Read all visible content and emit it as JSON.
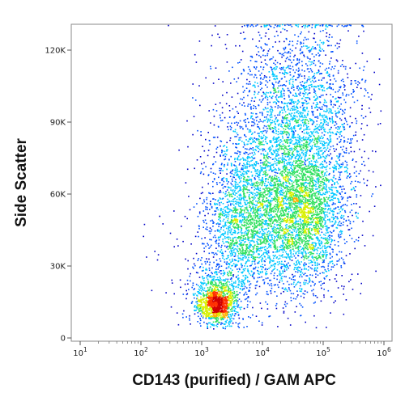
{
  "chart_data": {
    "type": "scatter",
    "subtype": "flow-cytometry-density-dot-plot",
    "xlabel": "CD143 (purified) / GAM APC",
    "ylabel": "Side Scatter",
    "x_scale": "log",
    "x_range": [
      10,
      1000000
    ],
    "x_ticks": [
      {
        "value": 10,
        "base": "10",
        "exp": "1"
      },
      {
        "value": 100,
        "base": "10",
        "exp": "2"
      },
      {
        "value": 1000,
        "base": "10",
        "exp": "3"
      },
      {
        "value": 10000,
        "base": "10",
        "exp": "4"
      },
      {
        "value": 100000,
        "base": "10",
        "exp": "5"
      },
      {
        "value": 1000000,
        "base": "10",
        "exp": "6"
      }
    ],
    "y_scale": "linear",
    "y_range": [
      0,
      131000
    ],
    "y_ticks": [
      {
        "value": 0,
        "label": "0"
      },
      {
        "value": 30000,
        "label": "30K"
      },
      {
        "value": 60000,
        "label": "60K"
      },
      {
        "value": 90000,
        "label": "90K"
      },
      {
        "value": 120000,
        "label": "120K"
      }
    ],
    "grid": false,
    "legend": "none",
    "color_scale": [
      "#0000c8",
      "#0050ff",
      "#00c8ff",
      "#30e060",
      "#d8f000",
      "#ffb000",
      "#ff3000",
      "#d00000"
    ],
    "populations": [
      {
        "x_center": 1700,
        "y_center": 14000,
        "density": "highest",
        "color": "#e00000"
      },
      {
        "x_center": 45000,
        "y_center": 55000,
        "density": "high",
        "color": "#f0d000"
      },
      {
        "x_center": 5000,
        "y_center": 47000,
        "density": "medium",
        "color": "#30e060"
      }
    ]
  }
}
